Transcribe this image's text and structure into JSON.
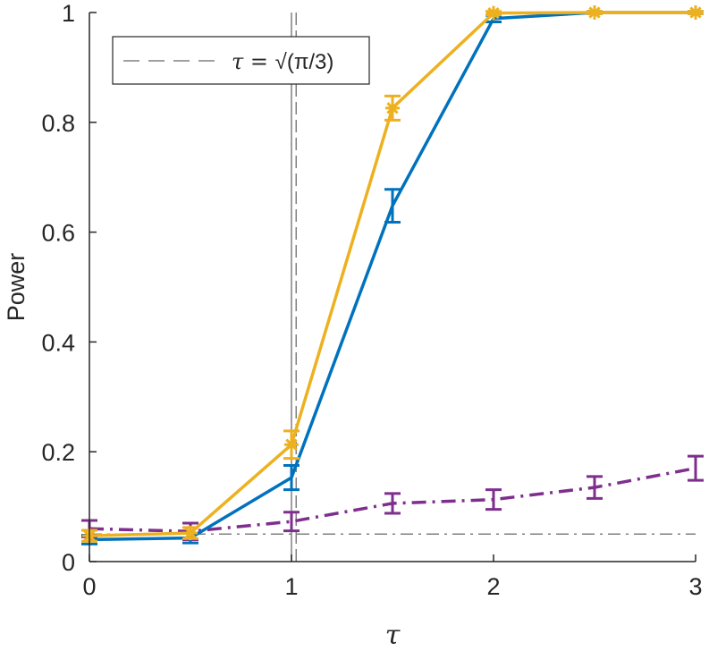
{
  "chart_data": {
    "type": "line",
    "xlabel": "τ",
    "ylabel": "Power",
    "xlim": [
      0,
      3
    ],
    "ylim": [
      0,
      1
    ],
    "xticks": [
      "0",
      "1",
      "2",
      "3"
    ],
    "yticks": [
      "0",
      "0.2",
      "0.4",
      "0.6",
      "0.8",
      "1"
    ],
    "grid": false,
    "legend": {
      "placement": "top-left",
      "entries": [
        {
          "label_prefix": "τ = ",
          "label_root": "√",
          "label_suffix": "(π/3)",
          "style": "dashed",
          "color": "#808080"
        }
      ]
    },
    "reference_lines": [
      {
        "orientation": "vertical",
        "x": 1.0,
        "style": "solid",
        "color": "#808080"
      },
      {
        "orientation": "vertical",
        "x": 1.0233,
        "style": "dashed",
        "color": "#808080"
      },
      {
        "orientation": "horizontal",
        "y": 0.05,
        "style": "dashdot",
        "color": "#808080"
      }
    ],
    "series": [
      {
        "color": "#EDB120",
        "line_style": "solid",
        "marker": "asterisk",
        "x": [
          0,
          0.5,
          1,
          1.5,
          2,
          2.5,
          3
        ],
        "y": [
          0.047,
          0.052,
          0.213,
          0.826,
          0.999,
          1.0,
          1.0
        ],
        "err": [
          0.01,
          0.01,
          0.025,
          0.022,
          0.003,
          0.002,
          0.002
        ]
      },
      {
        "color": "#0072BD",
        "line_style": "solid",
        "marker": "none",
        "x": [
          0,
          0.5,
          1,
          1.5,
          2,
          2.5,
          3
        ],
        "y": [
          0.04,
          0.043,
          0.153,
          0.648,
          0.989,
          1.0,
          1.0
        ],
        "err": [
          0.008,
          0.009,
          0.022,
          0.03,
          0.006,
          0.002,
          0.002
        ]
      },
      {
        "color": "#7E2F8E",
        "line_style": "dashdot",
        "marker": "none",
        "x": [
          0,
          0.5,
          1,
          1.5,
          2,
          2.5,
          3
        ],
        "y": [
          0.06,
          0.055,
          0.073,
          0.106,
          0.113,
          0.135,
          0.17
        ],
        "err": [
          0.015,
          0.015,
          0.017,
          0.018,
          0.018,
          0.02,
          0.022
        ]
      }
    ]
  }
}
